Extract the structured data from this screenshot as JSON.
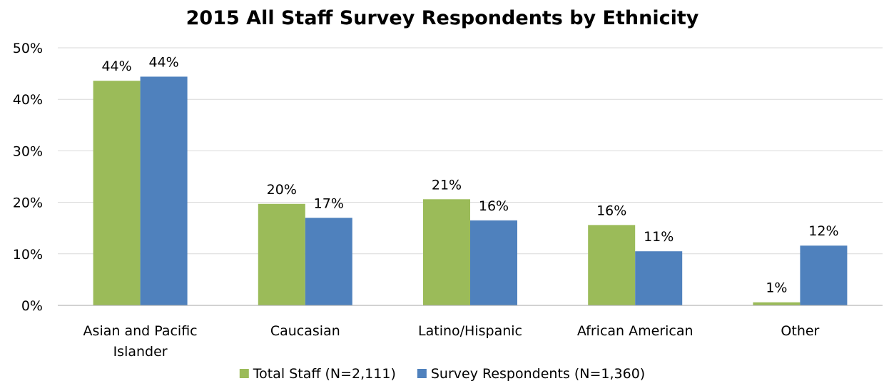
{
  "chart_data": {
    "type": "bar",
    "title": "2015 All Staff Survey Respondents by Ethnicity",
    "categories": [
      [
        "Asian and Pacific",
        "Islander"
      ],
      [
        "Caucasian"
      ],
      [
        "Latino/Hispanic"
      ],
      [
        "African American"
      ],
      [
        "Other"
      ]
    ],
    "series": [
      {
        "name": "Total Staff (N=2,111)",
        "color": "#9BBB59",
        "values": [
          43.6,
          19.7,
          20.6,
          15.6,
          0.6
        ],
        "labels": [
          "44%",
          "20%",
          "21%",
          "16%",
          "1%"
        ]
      },
      {
        "name": "Survey Respondents (N=1,360)",
        "color": "#4F81BD",
        "values": [
          44.4,
          17.0,
          16.5,
          10.5,
          11.6
        ],
        "labels": [
          "44%",
          "17%",
          "16%",
          "11%",
          "12%"
        ]
      }
    ],
    "ylim": [
      0,
      50
    ],
    "yticks": [
      "0%",
      "10%",
      "20%",
      "30%",
      "40%",
      "50%"
    ],
    "grid": true,
    "legend": "bottom"
  }
}
